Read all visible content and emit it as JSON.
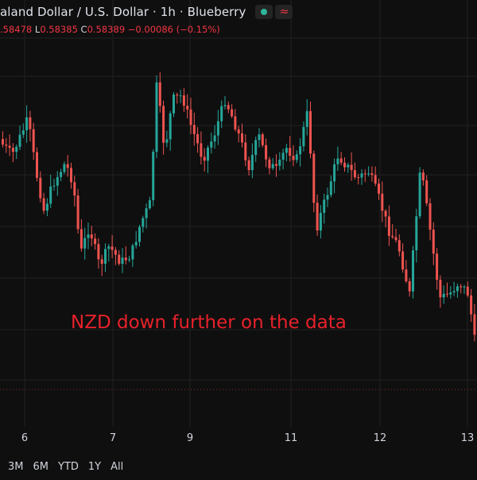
{
  "header": {
    "title": "aland Dollar / U.S. Dollar · 1h · Blueberry",
    "badge_live": "live-dot-icon",
    "badge_wave": "≈"
  },
  "ohlc": {
    "o_value": ".58478",
    "l_label": "L",
    "l_value": "0.58385",
    "c_label": "C",
    "c_value": "0.58389",
    "change": "−0.00086 (−0.15%)"
  },
  "annotation": "NZD down further on the data",
  "xaxis": {
    "labels": [
      "6",
      "7",
      "9",
      "11",
      "12",
      "13"
    ]
  },
  "ranges": [
    "3M",
    "6M",
    "YTD",
    "1Y",
    "All"
  ],
  "colors": {
    "up": "#26a69a",
    "down": "#ef5350",
    "annotation": "#e8212b",
    "grid": "#202020",
    "background": "#0f0f0f"
  },
  "chart_data": {
    "type": "candlestick",
    "series_trend": [
      0.5935,
      0.5932,
      0.5928,
      0.5918,
      0.591,
      0.5906,
      0.5902,
      0.5912,
      0.594,
      0.5938,
      0.5933,
      0.5936,
      0.5925,
      0.5928,
      0.591,
      0.5915,
      0.5918,
      0.5905,
      0.589,
      0.587,
      0.5875,
      0.586,
      0.5845
    ]
  }
}
